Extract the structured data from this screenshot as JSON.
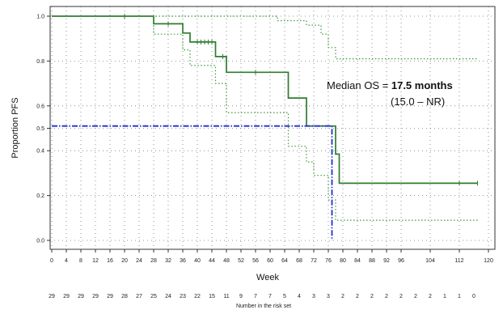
{
  "chart_data": {
    "type": "line",
    "title": "",
    "xlabel": "Week",
    "ylabel": "Proportion PFS",
    "xlim": [
      0,
      120
    ],
    "ylim": [
      -0.05,
      1.05
    ],
    "grid": true,
    "x_ticks": [
      0,
      4,
      8,
      12,
      16,
      20,
      24,
      28,
      32,
      36,
      40,
      44,
      48,
      52,
      56,
      60,
      64,
      68,
      72,
      76,
      80,
      84,
      88,
      92,
      96,
      104,
      112,
      120
    ],
    "y_ticks": [
      {
        "value": 1.0,
        "label": "1.0"
      },
      {
        "value": 0.8,
        "label": "0.8"
      },
      {
        "value": 0.6,
        "label": "0.6"
      },
      {
        "value": 0.5,
        "label": "0.5"
      },
      {
        "value": 0.4,
        "label": "0.4"
      },
      {
        "value": 0.2,
        "label": "0.2"
      },
      {
        "value": 0.0,
        "label": "0.0"
      }
    ],
    "series": [
      {
        "style": "km-step",
        "color": "#2e7d2e",
        "points": [
          [
            0,
            1.0
          ],
          [
            28,
            1.0
          ],
          [
            28,
            0.966
          ],
          [
            36,
            0.966
          ],
          [
            36,
            0.925
          ],
          [
            38,
            0.925
          ],
          [
            38,
            0.885
          ],
          [
            45,
            0.885
          ],
          [
            45,
            0.82
          ],
          [
            48,
            0.82
          ],
          [
            48,
            0.75
          ],
          [
            65,
            0.75
          ],
          [
            65,
            0.635
          ],
          [
            70,
            0.635
          ],
          [
            70,
            0.51
          ],
          [
            78,
            0.51
          ],
          [
            78,
            0.385
          ],
          [
            79,
            0.385
          ],
          [
            79,
            0.255
          ],
          [
            117,
            0.255
          ]
        ],
        "censor_x": [
          20,
          32,
          40,
          41,
          42,
          43,
          44,
          47,
          56,
          112,
          117
        ]
      },
      {
        "style": "ci-upper",
        "color": "#3a9a3a",
        "points": [
          [
            25,
            1.0
          ],
          [
            62,
            1.0
          ],
          [
            62,
            0.98
          ],
          [
            70,
            0.98
          ],
          [
            70,
            0.96
          ],
          [
            74,
            0.96
          ],
          [
            74,
            0.92
          ],
          [
            76,
            0.92
          ],
          [
            76,
            0.86
          ],
          [
            78,
            0.86
          ],
          [
            78,
            0.81
          ],
          [
            117,
            0.81
          ]
        ]
      },
      {
        "style": "ci-lower",
        "color": "#3a9a3a",
        "points": [
          [
            28,
            0.96
          ],
          [
            28,
            0.92
          ],
          [
            36,
            0.92
          ],
          [
            36,
            0.85
          ],
          [
            38,
            0.85
          ],
          [
            38,
            0.78
          ],
          [
            45,
            0.78
          ],
          [
            45,
            0.7
          ],
          [
            48,
            0.7
          ],
          [
            48,
            0.57
          ],
          [
            65,
            0.57
          ],
          [
            65,
            0.42
          ],
          [
            70,
            0.42
          ],
          [
            70,
            0.35
          ],
          [
            72,
            0.35
          ],
          [
            72,
            0.29
          ],
          [
            76,
            0.29
          ],
          [
            76,
            0.18
          ],
          [
            78,
            0.18
          ],
          [
            78,
            0.09
          ],
          [
            117,
            0.09
          ]
        ]
      },
      {
        "style": "median-guide",
        "color": "#1f2fd0",
        "points": [
          [
            0,
            0.51
          ],
          [
            77,
            0.51
          ],
          [
            77,
            0.0
          ]
        ]
      }
    ],
    "annotation": {
      "line1_prefix": "Median OS = ",
      "line1_value": "17.5 months",
      "line2": "(15.0 – NR)"
    },
    "risk_table": {
      "label": "Number in the risk set",
      "x": [
        0,
        4,
        8,
        12,
        16,
        20,
        24,
        28,
        32,
        36,
        40,
        44,
        48,
        52,
        56,
        60,
        64,
        68,
        72,
        76,
        80,
        84,
        88,
        92,
        96,
        100,
        104,
        108,
        112,
        116
      ],
      "counts": [
        "29",
        "29",
        "29",
        "29",
        "29",
        "28",
        "27",
        "25",
        "24",
        "23",
        "22",
        "15",
        "11",
        "9",
        "7",
        "7",
        "5",
        "4",
        "3",
        "3",
        "2",
        "2",
        "2",
        "2",
        "2",
        "2",
        "2",
        "1",
        "1",
        "0"
      ]
    }
  }
}
